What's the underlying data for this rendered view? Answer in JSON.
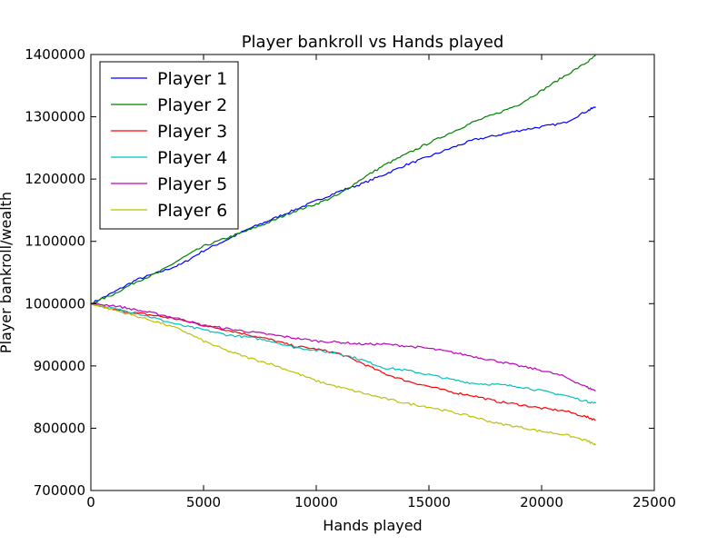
{
  "chart_data": {
    "type": "line",
    "title": "Player bankroll vs Hands played",
    "xlabel": "Hands played",
    "ylabel": "Player bankroll/wealth",
    "xlim": [
      0,
      25000
    ],
    "ylim": [
      700000,
      1400000
    ],
    "xticks": [
      "0",
      "5000",
      "10000",
      "15000",
      "20000",
      "25000"
    ],
    "yticks": [
      "700000",
      "800000",
      "900000",
      "1000000",
      "1100000",
      "1200000",
      "1300000",
      "1400000"
    ],
    "grid": false,
    "legend_position": "top-left",
    "x": [
      0,
      1000,
      2000,
      3000,
      4000,
      5000,
      6000,
      7000,
      8000,
      9000,
      10000,
      11000,
      12000,
      13000,
      14000,
      15000,
      16000,
      17000,
      18000,
      19000,
      20000,
      21000,
      22000,
      22400
    ],
    "series": [
      {
        "name": "Player 1",
        "color": "#0000ff",
        "values": [
          1000000,
          1018000,
          1038000,
          1050000,
          1063000,
          1085000,
          1102000,
          1120000,
          1135000,
          1150000,
          1165000,
          1180000,
          1192000,
          1207000,
          1223000,
          1236000,
          1250000,
          1263000,
          1270000,
          1278000,
          1284000,
          1290000,
          1309000,
          1316000
        ]
      },
      {
        "name": "Player 2",
        "color": "#008000",
        "values": [
          1000000,
          1015000,
          1035000,
          1050000,
          1072000,
          1092000,
          1105000,
          1118000,
          1132000,
          1148000,
          1160000,
          1175000,
          1200000,
          1222000,
          1240000,
          1258000,
          1275000,
          1292000,
          1305000,
          1320000,
          1342000,
          1365000,
          1387000,
          1398000
        ]
      },
      {
        "name": "Player 3",
        "color": "#ff0000",
        "values": [
          1000000,
          990000,
          985000,
          980000,
          974000,
          965000,
          958000,
          950000,
          942000,
          932000,
          927000,
          920000,
          905000,
          888000,
          876000,
          867000,
          858000,
          852000,
          843000,
          838000,
          832000,
          828000,
          818000,
          813000
        ]
      },
      {
        "name": "Player 4",
        "color": "#00bfbf",
        "values": [
          1000000,
          992000,
          985000,
          975000,
          965000,
          958000,
          950000,
          946000,
          940000,
          930000,
          925000,
          920000,
          910000,
          897000,
          893000,
          886000,
          878000,
          872000,
          870000,
          867000,
          860000,
          853000,
          843000,
          840000
        ]
      },
      {
        "name": "Player 5",
        "color": "#bf00bf",
        "values": [
          1000000,
          997000,
          990000,
          983000,
          975000,
          965000,
          960000,
          955000,
          950000,
          945000,
          940000,
          938000,
          935000,
          935000,
          932000,
          928000,
          922000,
          915000,
          908000,
          900000,
          893000,
          883000,
          866000,
          860000
        ]
      },
      {
        "name": "Player 6",
        "color": "#bfbf00",
        "values": [
          1000000,
          990000,
          980000,
          970000,
          958000,
          940000,
          925000,
          913000,
          903000,
          890000,
          876000,
          866000,
          857000,
          848000,
          840000,
          834000,
          826000,
          818000,
          808000,
          802000,
          795000,
          790000,
          780000,
          773000
        ]
      }
    ]
  }
}
